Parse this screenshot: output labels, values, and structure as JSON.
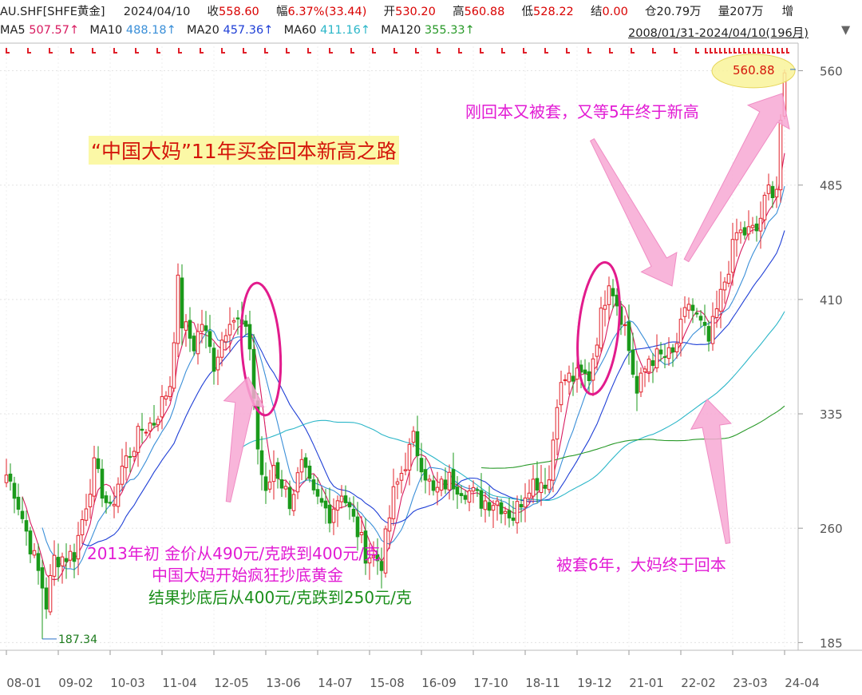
{
  "header": {
    "symbol": "AU.SHF[SHFE黄金]",
    "date": "2024/04/10",
    "close_label": "收",
    "close_value": "558.60",
    "change_label": "幅",
    "change_value": "6.37%(33.44)",
    "open_label": "开",
    "open_value": "530.20",
    "high_label": "高",
    "high_value": "560.88",
    "low_label": "低",
    "low_value": "528.22",
    "settle_label": "结",
    "settle_value": "0.00",
    "oi_label": "仓",
    "oi_value": "20.79万",
    "vol_label": "量",
    "vol_value": "207万",
    "extra_label": "增"
  },
  "ma_bar": {
    "items": [
      {
        "label": "MA5",
        "value": "507.57↑",
        "color": "#d81b60"
      },
      {
        "label": "MA10",
        "value": "488.18↑",
        "color": "#3a8fd8"
      },
      {
        "label": "MA20",
        "value": "457.36↑",
        "color": "#1f3fd6"
      },
      {
        "label": "MA60",
        "value": "411.16↑",
        "color": "#2bb6c8"
      },
      {
        "label": "MA120",
        "value": "355.33↑",
        "color": "#2a9a2a"
      }
    ],
    "range": "2008/01/31-2024/04/10(196月)",
    "range_arrow": "▼"
  },
  "chart_data": {
    "type": "candlestick",
    "period": "monthly",
    "y_ticks": [
      185,
      260,
      335,
      410,
      485,
      560
    ],
    "ylim": [
      181,
      576
    ],
    "x_ticks": [
      "08-01",
      "09-02",
      "10-03",
      "11-04",
      "12-05",
      "13-06",
      "14-07",
      "15-08",
      "16-09",
      "17-10",
      "18-11",
      "19-12",
      "21-01",
      "22-02",
      "23-03",
      "24-04"
    ],
    "low_marker": "187.34",
    "high_marker": "560.88",
    "gridlines": true,
    "colors": {
      "up": "#e0202a",
      "down": "#1b9a1b",
      "ma5": "#d81b60",
      "ma10": "#3a8fd8",
      "ma20": "#1f3fd6",
      "ma60": "#2bb6c8",
      "ma120": "#2a9a2a"
    }
  },
  "annotations": {
    "title": "“中国大妈”11年买金回本新高之路",
    "new_high": "刚回本又被套，又等5年终于新高",
    "text_2013_line1": "2013年初 金价从490元/克跌到400元/克",
    "text_2013_line2": "中国大妈开始疯狂抄底黄金",
    "text_2013_line3": "结果抄底后从400元/克跌到250元/克",
    "trapped": "被套6年，大妈终于回本"
  }
}
